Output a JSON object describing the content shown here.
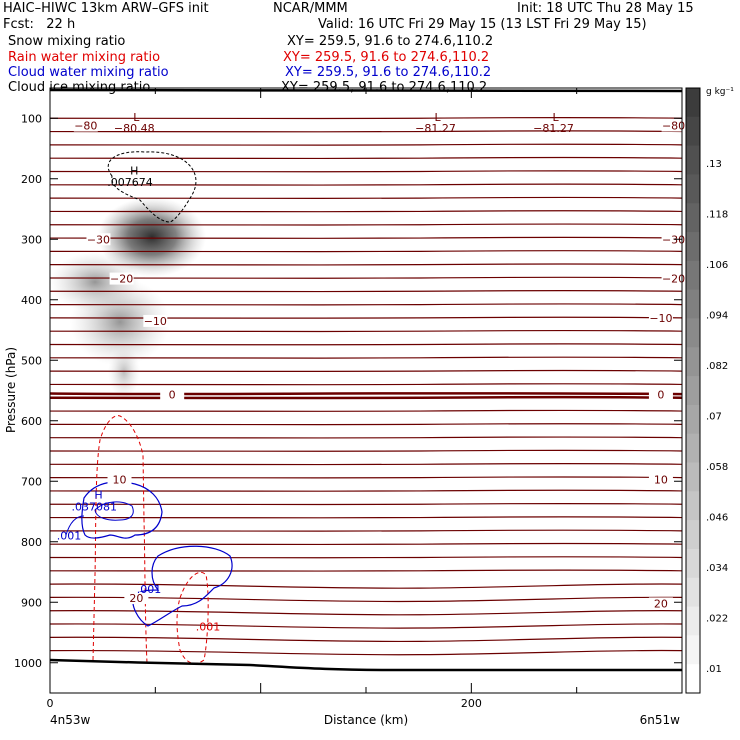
{
  "header": {
    "model": "HAIC–HIWC 13km ARW–GFS init",
    "org": "NCAR/MMM",
    "init": "Init: 18 UTC Thu 28 May 15",
    "fcst": "Fcst:   22 h",
    "valid": "Valid: 16 UTC Fri 29 May 15 (13 LST Fri 29 May 15)"
  },
  "fields": [
    {
      "name": "Snow mixing ratio",
      "xy": "XY= 259.5, 91.6 to 274.6,110.2",
      "color": "#000000"
    },
    {
      "name": "Rain water mixing ratio",
      "xy": "XY= 259.5, 91.6 to 274.6,110.2",
      "color": "#e00000"
    },
    {
      "name": "Cloud water mixing ratio",
      "xy": "XY= 259.5, 91.6 to 274.6,110.2",
      "color": "#0000cc"
    },
    {
      "name": "Cloud ice mixing ratio",
      "xy": "XY= 259.5, 91.6 to 274.6,110.2",
      "color": "#000000"
    }
  ],
  "chart_data": {
    "type": "contour cross-section",
    "xlabel": "Distance (km)",
    "ylabel": "Pressure (hPa)",
    "xlim": [
      0,
      300
    ],
    "ylim": [
      1050,
      50
    ],
    "x_ticks": [
      "0",
      "200"
    ],
    "y_ticks": [
      "100",
      "200",
      "300",
      "400",
      "500",
      "600",
      "700",
      "800",
      "900",
      "1000"
    ],
    "endpoints": {
      "left": "4n53w",
      "right": "6n51w"
    },
    "colorbar": {
      "unit": "g kg⁻¹",
      "labels": [
        ".13",
        ".118",
        ".106",
        ".094",
        ".082",
        ".07",
        ".058",
        ".046",
        ".034",
        ".022",
        ".01"
      ]
    },
    "temperature_labels": [
      {
        "text": "−80",
        "x": 17,
        "p": 112
      },
      {
        "text": "−80",
        "x": 296,
        "p": 112
      },
      {
        "text": "−30",
        "x": 23,
        "p": 300
      },
      {
        "text": "−30",
        "x": 296,
        "p": 300
      },
      {
        "text": "−20",
        "x": 34,
        "p": 365
      },
      {
        "text": "−20",
        "x": 296,
        "p": 365
      },
      {
        "text": "−10",
        "x": 50,
        "p": 435
      },
      {
        "text": "−10",
        "x": 290,
        "p": 430
      },
      {
        "text": "0",
        "x": 58,
        "p": 557
      },
      {
        "text": "0",
        "x": 290,
        "p": 557
      },
      {
        "text": "10",
        "x": 33,
        "p": 697
      },
      {
        "text": "10",
        "x": 290,
        "p": 697
      },
      {
        "text": "20",
        "x": 41,
        "p": 893
      },
      {
        "text": "20",
        "x": 290,
        "p": 902
      }
    ],
    "extrema_labels": [
      {
        "text": "L",
        "x": 41,
        "p": 98,
        "color": "#6b0000"
      },
      {
        "text": "−80.48",
        "x": 40,
        "p": 116,
        "color": "#6b0000"
      },
      {
        "text": "L",
        "x": 184,
        "p": 98,
        "color": "#6b0000"
      },
      {
        "text": "−81.27",
        "x": 183,
        "p": 116,
        "color": "#6b0000"
      },
      {
        "text": "L",
        "x": 240,
        "p": 98,
        "color": "#6b0000"
      },
      {
        "text": "−81.27",
        "x": 239,
        "p": 116,
        "color": "#6b0000"
      },
      {
        "text": "H",
        "x": 40,
        "p": 186,
        "color": "#000000"
      },
      {
        "text": ".007674",
        "x": 38,
        "p": 205,
        "color": "#000000"
      },
      {
        "text": "H",
        "x": 23,
        "p": 722,
        "color": "#0000cc"
      },
      {
        "text": ".037081",
        "x": 21,
        "p": 742,
        "color": "#0000cc"
      },
      {
        "text": ".001",
        "x": 9,
        "p": 790,
        "color": "#0000cc"
      },
      {
        "text": ".001",
        "x": 47,
        "p": 878,
        "color": "#0000cc"
      },
      {
        "text": ".001",
        "x": 75,
        "p": 940,
        "color": "#e00000"
      }
    ]
  }
}
